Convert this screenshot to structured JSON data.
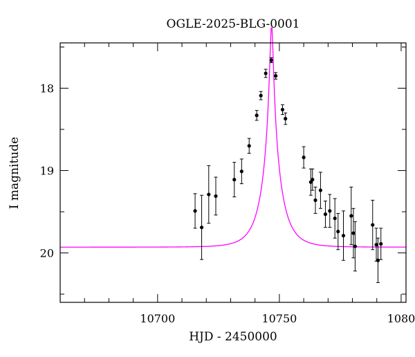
{
  "chart_data": {
    "type": "scatter",
    "title": "OGLE-2025-BLG-0001",
    "xlabel": "HJD - 2450000",
    "ylabel": "I magnitude",
    "xlim": [
      10660,
      10802
    ],
    "ylim": [
      20.6,
      17.45
    ],
    "y_inverted": true,
    "grid": false,
    "x_ticks": [
      10700,
      10750
    ],
    "x_tick_labels": [
      "10700",
      "10750"
    ],
    "x_extra_label": "1080",
    "y_ticks": [
      18,
      19,
      20
    ],
    "y_tick_labels": [
      "18",
      "19",
      "20"
    ],
    "series": [
      {
        "kind": "points_with_errorbars",
        "color": "#000000",
        "points": [
          {
            "x": 10715.4,
            "y": 19.49,
            "err": 0.21
          },
          {
            "x": 10718.1,
            "y": 19.69,
            "err": 0.39
          },
          {
            "x": 10721.0,
            "y": 19.29,
            "err": 0.35
          },
          {
            "x": 10723.9,
            "y": 19.31,
            "err": 0.23
          },
          {
            "x": 10731.5,
            "y": 19.11,
            "err": 0.21
          },
          {
            "x": 10734.5,
            "y": 19.01,
            "err": 0.15
          },
          {
            "x": 10737.6,
            "y": 18.7,
            "err": 0.09
          },
          {
            "x": 10740.7,
            "y": 18.33,
            "err": 0.06
          },
          {
            "x": 10742.4,
            "y": 18.09,
            "err": 0.05
          },
          {
            "x": 10744.4,
            "y": 17.82,
            "err": 0.05
          },
          {
            "x": 10746.7,
            "y": 17.66,
            "err": 0.03
          },
          {
            "x": 10748.5,
            "y": 17.85,
            "err": 0.04
          },
          {
            "x": 10751.3,
            "y": 18.26,
            "err": 0.06
          },
          {
            "x": 10752.5,
            "y": 18.37,
            "err": 0.07
          },
          {
            "x": 10760.0,
            "y": 18.84,
            "err": 0.13
          },
          {
            "x": 10762.9,
            "y": 19.14,
            "err": 0.16
          },
          {
            "x": 10763.6,
            "y": 19.11,
            "err": 0.13
          },
          {
            "x": 10764.8,
            "y": 19.36,
            "err": 0.16
          },
          {
            "x": 10766.9,
            "y": 19.24,
            "err": 0.22
          },
          {
            "x": 10768.9,
            "y": 19.53,
            "err": 0.16
          },
          {
            "x": 10770.7,
            "y": 19.49,
            "err": 0.2
          },
          {
            "x": 10772.8,
            "y": 19.58,
            "err": 0.24
          },
          {
            "x": 10774.1,
            "y": 19.74,
            "err": 0.22
          },
          {
            "x": 10776.3,
            "y": 19.79,
            "err": 0.3
          },
          {
            "x": 10779.5,
            "y": 19.55,
            "err": 0.35
          },
          {
            "x": 10780.4,
            "y": 19.76,
            "err": 0.3
          },
          {
            "x": 10781.1,
            "y": 19.92,
            "err": 0.3
          },
          {
            "x": 10788.3,
            "y": 19.66,
            "err": 0.3
          },
          {
            "x": 10789.8,
            "y": 19.9,
            "err": 0.2
          },
          {
            "x": 10790.5,
            "y": 20.09,
            "err": 0.27
          },
          {
            "x": 10791.7,
            "y": 19.89,
            "err": 0.19
          }
        ]
      },
      {
        "kind": "model_curve",
        "color": "#ff00ff",
        "model": {
          "t0": 10746.8,
          "tE": 7.3,
          "u0": 0.083,
          "m_base": 19.93
        }
      }
    ]
  }
}
